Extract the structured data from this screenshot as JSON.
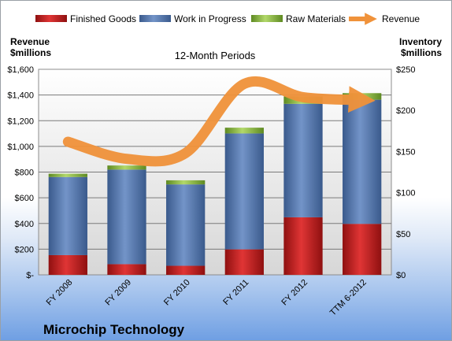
{
  "chart_data": {
    "type": "bar",
    "stacked": true,
    "title": "12-Month Periods",
    "company": "Microchip Technology",
    "left_axis_title": [
      "Revenue",
      "$millions"
    ],
    "right_axis_title": [
      "Inventory",
      "$millions"
    ],
    "categories": [
      "FY 2008",
      "FY 2009",
      "FY 2010",
      "FY 2011",
      "FY 2012",
      "TTM 6-2012"
    ],
    "left_ylim": [
      0,
      1600
    ],
    "right_ylim": [
      0,
      250
    ],
    "left_ticks": [
      "$-",
      "$200",
      "$400",
      "$600",
      "$800",
      "$1,000",
      "$1,200",
      "$1,400",
      "$1,600"
    ],
    "right_ticks": [
      "$0",
      "$50",
      "$100",
      "$150",
      "$200",
      "$250"
    ],
    "series": [
      {
        "name": "Finished Goods",
        "axis": "right",
        "color": "#cc1f1f",
        "values": [
          24,
          13,
          11,
          31,
          70,
          62
        ]
      },
      {
        "name": "Work in Progress",
        "axis": "right",
        "color": "#5b7fb6",
        "values": [
          95,
          115,
          99,
          141,
          138,
          151
        ]
      },
      {
        "name": "Raw Materials",
        "axis": "right",
        "color": "#8fbf3f",
        "values": [
          4,
          5,
          5,
          7,
          9,
          8
        ]
      },
      {
        "name": "Revenue",
        "axis": "left",
        "color": "#f0923a",
        "type": "line",
        "values": [
          1036,
          903,
          948,
          1487,
          1383,
          1361
        ]
      }
    ],
    "legend_position": "top",
    "grid": true
  }
}
